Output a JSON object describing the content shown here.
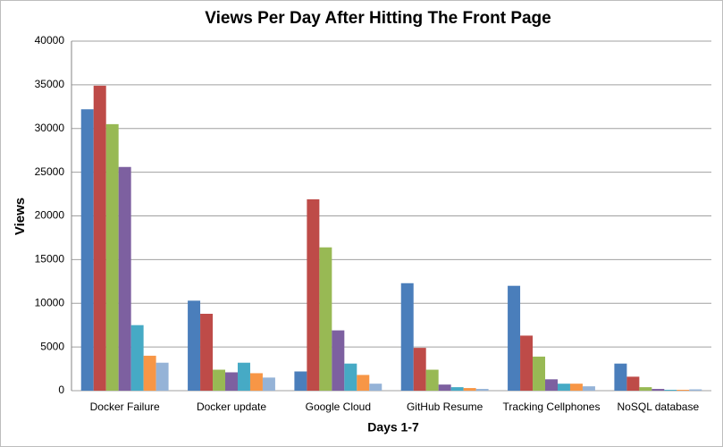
{
  "chart_data": {
    "type": "bar",
    "title": "Views Per Day After Hitting The Front Page",
    "x_label": "Days 1-7",
    "y_label": "Views",
    "categories": [
      "Docker Failure",
      "Docker update",
      "Google Cloud",
      "GitHub Resume",
      "Tracking Cellphones",
      "NoSQL database"
    ],
    "series": [
      {
        "color": "#4a7ebb",
        "values": [
          32200,
          10300,
          2200,
          12300,
          12000,
          3100
        ]
      },
      {
        "color": "#be4b48",
        "values": [
          34900,
          8800,
          21900,
          4900,
          6300,
          1600
        ]
      },
      {
        "color": "#98b954",
        "values": [
          30500,
          2400,
          16400,
          2400,
          3900,
          400
        ]
      },
      {
        "color": "#7d60a0",
        "values": [
          25600,
          2100,
          6900,
          700,
          1300,
          200
        ]
      },
      {
        "color": "#46aac5",
        "values": [
          7500,
          3200,
          3100,
          400,
          800,
          100
        ]
      },
      {
        "color": "#f79646",
        "values": [
          4000,
          2000,
          1800,
          300,
          800,
          100
        ]
      },
      {
        "color": "#95b3d7",
        "values": [
          3200,
          1500,
          800,
          200,
          500,
          150
        ]
      }
    ],
    "ylim": [
      0,
      40000
    ],
    "yticks": [
      0,
      5000,
      10000,
      15000,
      20000,
      25000,
      30000,
      35000,
      40000
    ],
    "grid": true
  }
}
